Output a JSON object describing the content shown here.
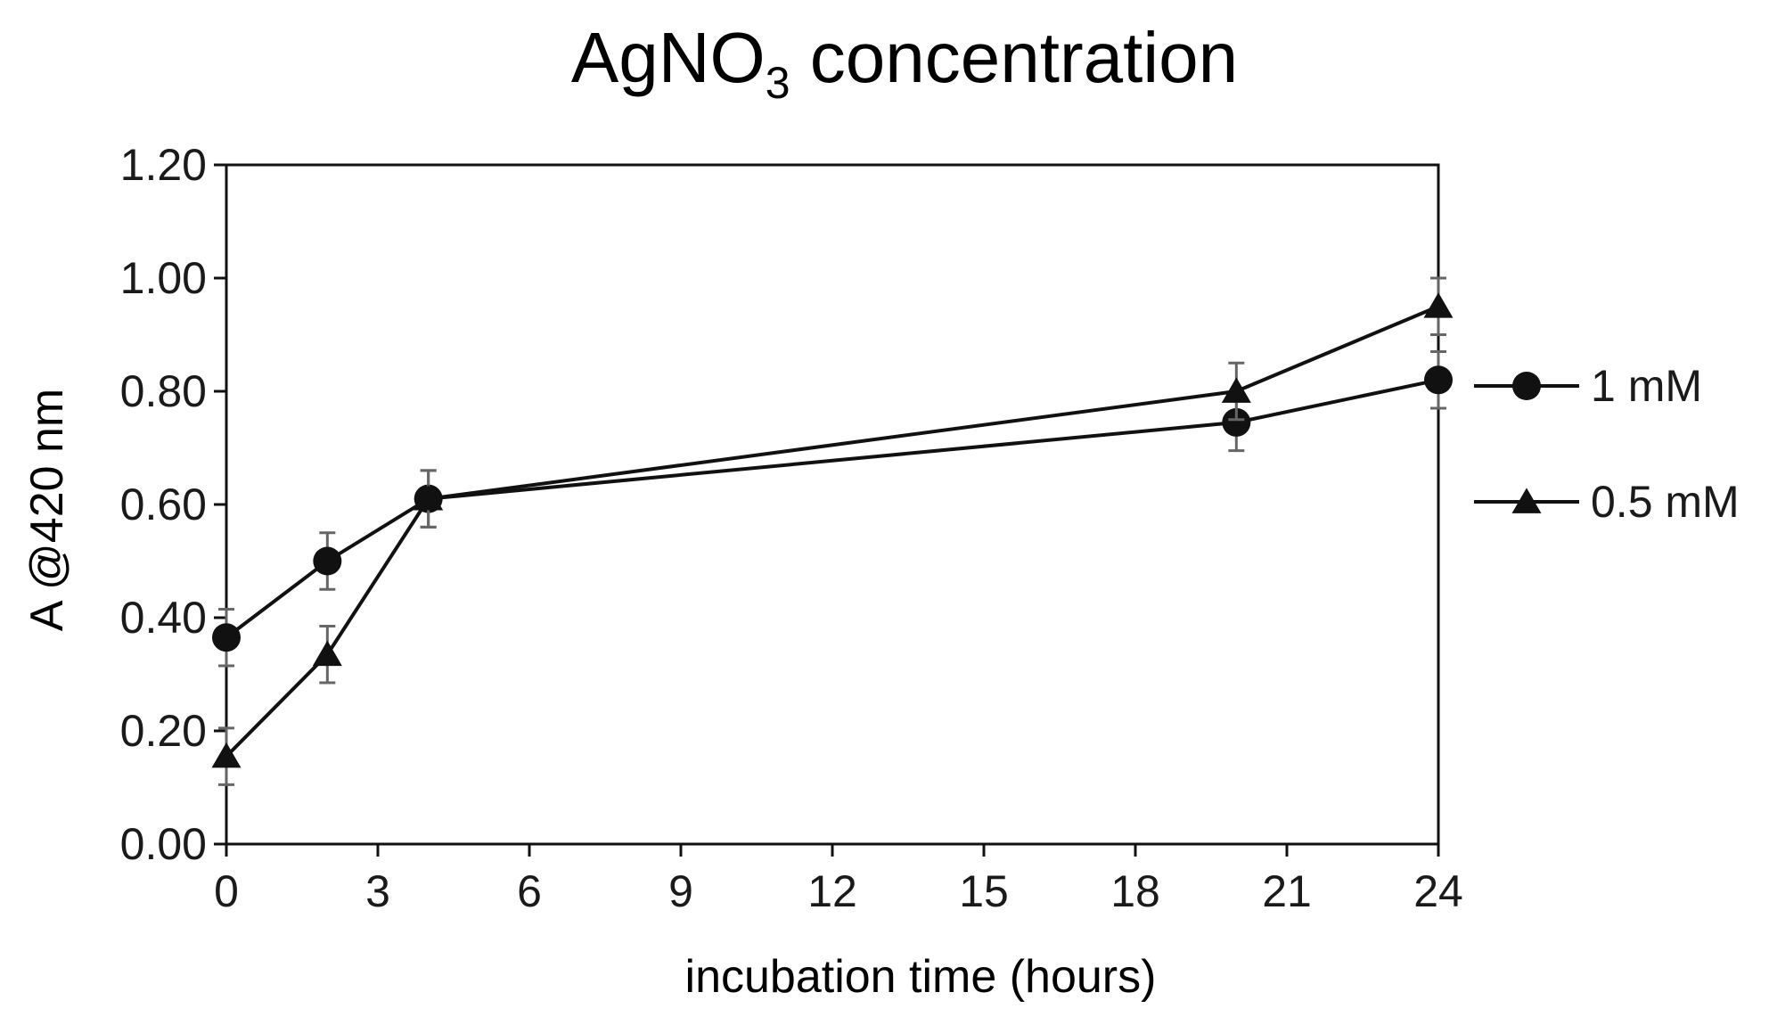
{
  "chart_data": {
    "type": "line",
    "title": {
      "main": "AgNO",
      "subscript": "3",
      "rest": " concentration"
    },
    "xlabel": "incubation time (hours)",
    "ylabel": "A @420 nm",
    "xlim": [
      0,
      24
    ],
    "ylim": [
      0,
      1.2
    ],
    "x_ticks": [
      "0",
      "3",
      "6",
      "9",
      "12",
      "15",
      "18",
      "21",
      "24"
    ],
    "y_ticks": [
      "0.00",
      "0.20",
      "0.40",
      "0.60",
      "0.80",
      "1.00",
      "1.20"
    ],
    "legend_position": "right",
    "series": [
      {
        "name": "1 mM",
        "marker": "circle",
        "x": [
          0,
          2,
          4,
          20,
          24
        ],
        "y": [
          0.365,
          0.5,
          0.61,
          0.745,
          0.82
        ],
        "err": [
          0.05,
          0.05,
          0.05,
          0.05,
          0.05
        ]
      },
      {
        "name": "0.5 mM",
        "marker": "triangle",
        "x": [
          0,
          2,
          4,
          20,
          24
        ],
        "y": [
          0.155,
          0.335,
          0.61,
          0.8,
          0.95
        ],
        "err": [
          0.05,
          0.05,
          0.05,
          0.05,
          0.05
        ]
      }
    ],
    "colors": {
      "line": "#111111",
      "error_bar": "#666666",
      "axis": "#111111"
    }
  }
}
